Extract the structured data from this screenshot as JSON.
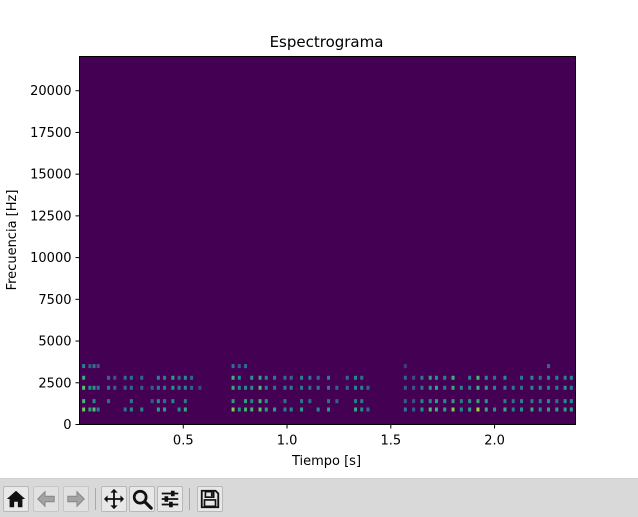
{
  "chart_data": {
    "type": "heatmap",
    "title": "Espectrograma",
    "xlabel": "Tiempo [s]",
    "ylabel": "Frecuencia [Hz]",
    "xlim": [
      0.0,
      2.39
    ],
    "ylim": [
      0,
      22050
    ],
    "xticks": [
      0.5,
      1.0,
      1.5,
      2.0
    ],
    "yticks": [
      0,
      2500,
      5000,
      7500,
      10000,
      12500,
      15000,
      17500,
      20000
    ],
    "xtick_labels": [
      "0.5",
      "1.0",
      "1.5",
      "2.0"
    ],
    "ytick_labels": [
      "0",
      "2500",
      "5000",
      "7500",
      "10000",
      "12500",
      "15000",
      "17500",
      "20000"
    ],
    "colormap": "viridis",
    "background_color": "#440154",
    "grid": false,
    "legend": false,
    "freq_bands_hz": [
      900,
      1400,
      2200,
      2800,
      3500
    ],
    "events": [
      {
        "t": 0.02,
        "bands": [
          0,
          1,
          2,
          3,
          4
        ],
        "level": 0.9
      },
      {
        "t": 0.05,
        "bands": [
          0,
          2,
          4
        ],
        "level": 0.6
      },
      {
        "t": 0.07,
        "bands": [
          0,
          1,
          2,
          4
        ],
        "level": 0.7
      },
      {
        "t": 0.09,
        "bands": [
          0,
          2,
          4
        ],
        "level": 0.5
      },
      {
        "t": 0.14,
        "bands": [
          1,
          2,
          3
        ],
        "level": 0.5
      },
      {
        "t": 0.17,
        "bands": [
          2,
          3
        ],
        "level": 0.4
      },
      {
        "t": 0.22,
        "bands": [
          0,
          2,
          3
        ],
        "level": 0.45
      },
      {
        "t": 0.25,
        "bands": [
          0,
          1,
          2,
          3
        ],
        "level": 0.5
      },
      {
        "t": 0.3,
        "bands": [
          0,
          2,
          3
        ],
        "level": 0.45
      },
      {
        "t": 0.35,
        "bands": [
          1,
          2
        ],
        "level": 0.4
      },
      {
        "t": 0.38,
        "bands": [
          0,
          1,
          2,
          3
        ],
        "level": 0.6
      },
      {
        "t": 0.41,
        "bands": [
          0,
          1,
          2,
          3
        ],
        "level": 0.55
      },
      {
        "t": 0.45,
        "bands": [
          1,
          2,
          3
        ],
        "level": 0.7
      },
      {
        "t": 0.48,
        "bands": [
          0,
          2,
          3
        ],
        "level": 0.5
      },
      {
        "t": 0.51,
        "bands": [
          0,
          1,
          2,
          3
        ],
        "level": 0.6
      },
      {
        "t": 0.54,
        "bands": [
          2,
          3
        ],
        "level": 0.45
      },
      {
        "t": 0.58,
        "bands": [
          2
        ],
        "level": 0.3
      },
      {
        "t": 0.74,
        "bands": [
          0,
          1,
          2,
          3,
          4
        ],
        "level": 0.8
      },
      {
        "t": 0.77,
        "bands": [
          0,
          2,
          3,
          4
        ],
        "level": 0.6
      },
      {
        "t": 0.8,
        "bands": [
          0,
          1,
          2,
          4
        ],
        "level": 0.7
      },
      {
        "t": 0.83,
        "bands": [
          0,
          1,
          2,
          3
        ],
        "level": 0.65
      },
      {
        "t": 0.87,
        "bands": [
          0,
          1,
          2,
          3
        ],
        "level": 0.85
      },
      {
        "t": 0.9,
        "bands": [
          0,
          1,
          2,
          3
        ],
        "level": 0.6
      },
      {
        "t": 0.94,
        "bands": [
          0,
          2,
          3
        ],
        "level": 0.55
      },
      {
        "t": 0.99,
        "bands": [
          0,
          1,
          2,
          3
        ],
        "level": 0.5
      },
      {
        "t": 1.02,
        "bands": [
          0,
          2,
          3
        ],
        "level": 0.5
      },
      {
        "t": 1.07,
        "bands": [
          0,
          1,
          2,
          3
        ],
        "level": 0.55
      },
      {
        "t": 1.11,
        "bands": [
          1,
          2,
          3
        ],
        "level": 0.5
      },
      {
        "t": 1.15,
        "bands": [
          0,
          2,
          3
        ],
        "level": 0.5
      },
      {
        "t": 1.2,
        "bands": [
          0,
          1,
          2,
          3
        ],
        "level": 0.55
      },
      {
        "t": 1.24,
        "bands": [
          1,
          2
        ],
        "level": 0.45
      },
      {
        "t": 1.29,
        "bands": [
          2,
          3
        ],
        "level": 0.45
      },
      {
        "t": 1.33,
        "bands": [
          0,
          1,
          2,
          3
        ],
        "level": 0.6
      },
      {
        "t": 1.36,
        "bands": [
          0,
          1,
          2,
          3
        ],
        "level": 0.55
      },
      {
        "t": 1.39,
        "bands": [
          0,
          2
        ],
        "level": 0.4
      },
      {
        "t": 1.57,
        "bands": [
          0,
          1,
          2,
          3,
          4
        ],
        "level": 0.4
      },
      {
        "t": 1.61,
        "bands": [
          0,
          1,
          2,
          3
        ],
        "level": 0.35
      },
      {
        "t": 1.65,
        "bands": [
          0,
          1,
          2,
          3
        ],
        "level": 0.55
      },
      {
        "t": 1.69,
        "bands": [
          0,
          1,
          2,
          3
        ],
        "level": 0.7
      },
      {
        "t": 1.72,
        "bands": [
          0,
          1,
          2,
          3
        ],
        "level": 0.75
      },
      {
        "t": 1.76,
        "bands": [
          0,
          1,
          2,
          3
        ],
        "level": 0.6
      },
      {
        "t": 1.8,
        "bands": [
          0,
          1,
          2,
          3
        ],
        "level": 0.8
      },
      {
        "t": 1.84,
        "bands": [
          0,
          1,
          2
        ],
        "level": 0.55
      },
      {
        "t": 1.88,
        "bands": [
          0,
          1,
          2,
          3
        ],
        "level": 0.6
      },
      {
        "t": 1.92,
        "bands": [
          0,
          1,
          2,
          3
        ],
        "level": 0.85
      },
      {
        "t": 1.96,
        "bands": [
          0,
          1,
          2,
          3
        ],
        "level": 0.7
      },
      {
        "t": 2.0,
        "bands": [
          0,
          2,
          3
        ],
        "level": 0.55
      },
      {
        "t": 2.05,
        "bands": [
          0,
          1,
          2,
          3
        ],
        "level": 0.6
      },
      {
        "t": 2.09,
        "bands": [
          0,
          1,
          2
        ],
        "level": 0.5
      },
      {
        "t": 2.13,
        "bands": [
          0,
          1,
          2,
          3
        ],
        "level": 0.55
      },
      {
        "t": 2.18,
        "bands": [
          0,
          1,
          2,
          3
        ],
        "level": 0.6
      },
      {
        "t": 2.22,
        "bands": [
          0,
          1,
          2,
          3
        ],
        "level": 0.55
      },
      {
        "t": 2.26,
        "bands": [
          0,
          1,
          2,
          3,
          4
        ],
        "level": 0.6
      },
      {
        "t": 2.3,
        "bands": [
          0,
          1,
          2,
          3
        ],
        "level": 0.55
      },
      {
        "t": 2.34,
        "bands": [
          0,
          1,
          2,
          3
        ],
        "level": 0.65
      },
      {
        "t": 2.37,
        "bands": [
          0,
          1,
          2,
          3
        ],
        "level": 0.6
      }
    ]
  },
  "toolbar": {
    "buttons": [
      {
        "name": "home-button",
        "icon": "home-icon"
      },
      {
        "name": "back-button",
        "icon": "arrow-left-icon"
      },
      {
        "name": "forward-button",
        "icon": "arrow-right-icon"
      },
      {
        "name": "pan-button",
        "icon": "move-icon"
      },
      {
        "name": "zoom-button",
        "icon": "magnifier-icon"
      },
      {
        "name": "configure-subplots-button",
        "icon": "sliders-icon"
      },
      {
        "name": "save-button",
        "icon": "floppy-disk-icon"
      }
    ]
  }
}
